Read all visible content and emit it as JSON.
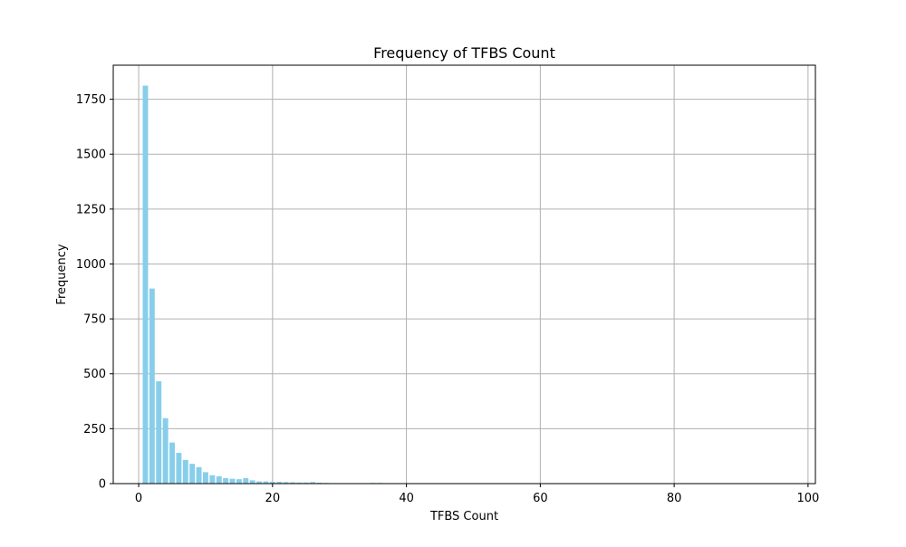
{
  "chart_data": {
    "type": "bar",
    "title": "Frequency of TFBS Count",
    "xlabel": "TFBS Count",
    "ylabel": "Frequency",
    "xlim": [
      -3.8,
      101.1
    ],
    "ylim": [
      0,
      1905
    ],
    "xticks": [
      0,
      20,
      40,
      60,
      80,
      100
    ],
    "yticks": [
      0,
      250,
      500,
      750,
      1000,
      1250,
      1500,
      1750
    ],
    "grid": true,
    "bar_color": "#87ceeb",
    "bar_width": 0.8,
    "x": [
      1,
      2,
      3,
      4,
      5,
      6,
      7,
      8,
      9,
      10,
      11,
      12,
      13,
      14,
      15,
      16,
      17,
      18,
      19,
      20,
      21,
      22,
      23,
      24,
      25,
      26,
      27,
      28,
      29,
      30,
      31,
      32,
      33,
      34,
      35,
      36,
      37,
      38,
      39,
      40,
      41,
      42,
      43,
      44,
      45,
      46,
      47,
      48,
      49,
      50,
      51,
      52,
      53,
      54,
      55,
      56,
      57,
      58,
      59,
      60,
      61,
      62,
      63,
      64,
      65,
      66,
      67,
      68,
      69,
      70,
      71,
      72,
      73,
      74,
      75,
      76,
      77,
      78,
      79,
      80,
      81,
      82,
      83,
      84,
      85,
      86,
      87,
      88,
      89,
      90,
      91,
      92,
      93,
      94,
      95,
      96,
      97
    ],
    "values": [
      1812,
      888,
      466,
      298,
      187,
      140,
      108,
      90,
      75,
      52,
      38,
      33,
      25,
      22,
      20,
      25,
      15,
      10,
      10,
      8,
      8,
      7,
      6,
      5,
      5,
      7,
      4,
      3,
      2,
      2,
      1,
      1,
      2,
      1,
      3,
      3,
      2,
      1,
      1,
      1,
      1,
      1,
      1,
      1,
      1,
      1,
      1,
      1,
      1,
      1,
      1,
      1,
      1,
      1,
      1,
      1,
      1,
      1,
      1,
      1,
      1,
      1,
      1,
      1,
      1,
      1,
      1,
      1,
      1,
      1,
      1,
      1,
      1,
      1,
      1,
      1,
      1,
      1,
      1,
      1,
      1,
      1,
      1,
      1,
      1,
      1,
      1,
      1,
      1,
      1,
      1,
      1,
      1,
      1,
      1,
      1,
      1
    ]
  }
}
